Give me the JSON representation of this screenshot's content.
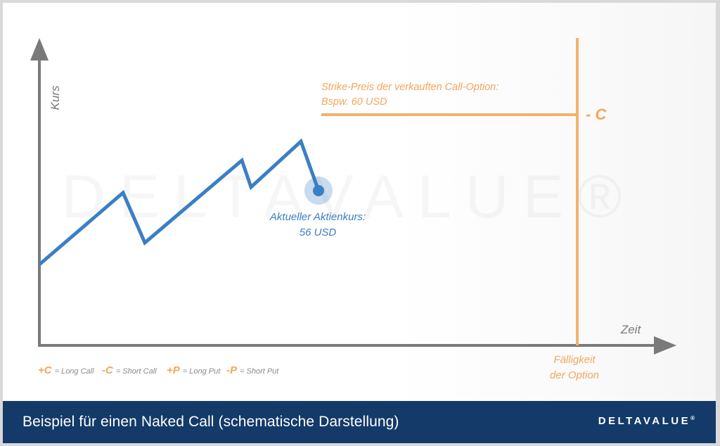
{
  "diagram": {
    "y_axis_label": "Kurs",
    "x_axis_label": "Zeit",
    "strike": {
      "label_line1": "Strike-Preis der verkauften Call-Option:",
      "label_line2": "Bspw. 60 USD"
    },
    "expiry": {
      "marker": "- C",
      "label_line1": "Fälligkeit",
      "label_line2": "der Option"
    },
    "current_price": {
      "label_line1": "Aktueller Aktienkurs:",
      "label_line2": "56 USD"
    },
    "legend": [
      {
        "symbol": "+C",
        "text": "= Long Call"
      },
      {
        "symbol": "-C",
        "text": "= Short Call"
      },
      {
        "symbol": "+P",
        "text": "= Long Put"
      },
      {
        "symbol": "-P",
        "text": "= Short Put"
      }
    ],
    "watermark": "DELTAVALUE®"
  },
  "footer": {
    "title": "Beispiel für einen Naked Call (schematische Darstellung)",
    "logo": "DELTAVALUE",
    "logo_mark": "®"
  },
  "colors": {
    "axis": "#7a7a7a",
    "price_line": "#3a7fc4",
    "strike": "#f2b26b",
    "legend_symbol": "#f2a65a",
    "footer_bg": "#133a68"
  }
}
